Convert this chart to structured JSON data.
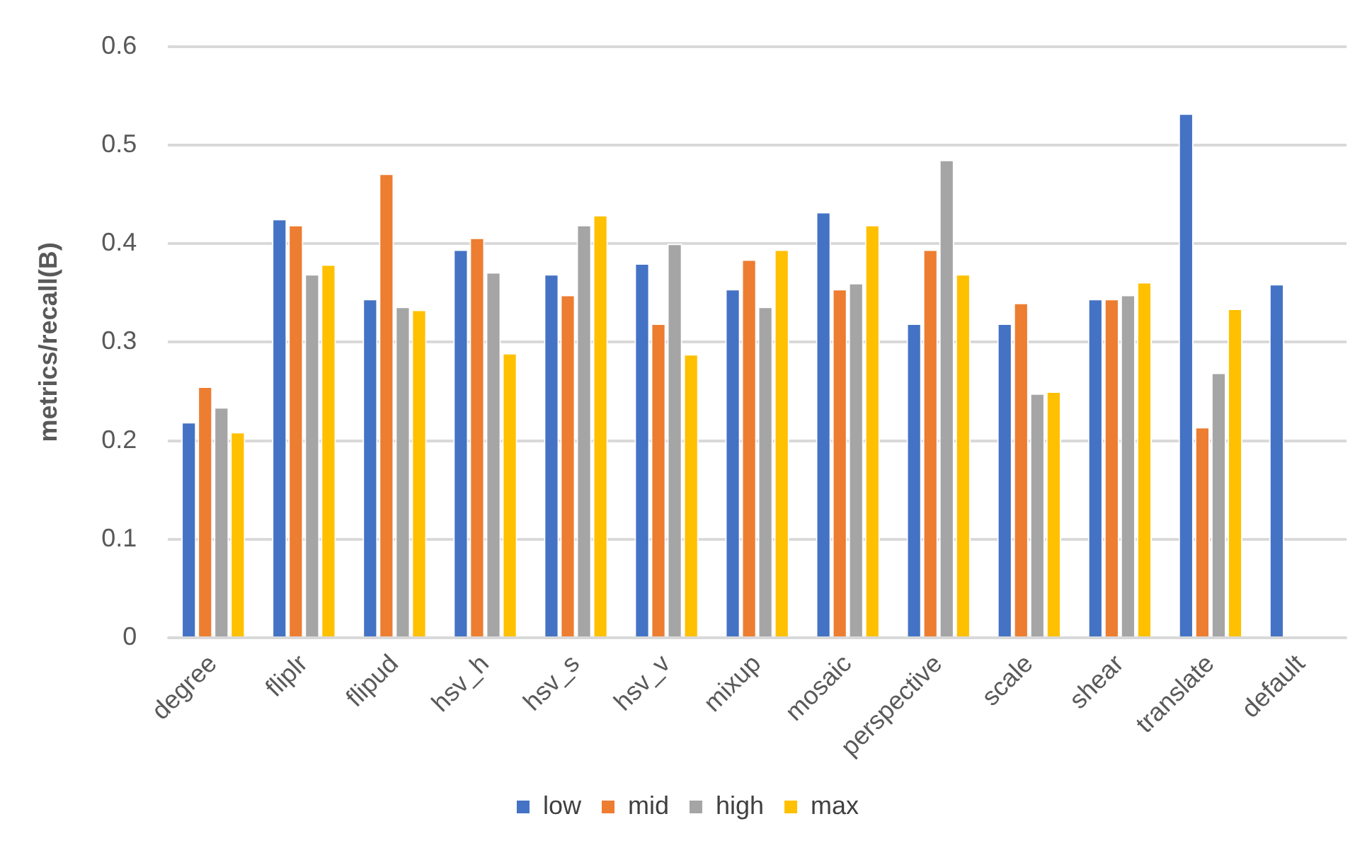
{
  "chart_data": {
    "type": "bar",
    "ylabel": "metrics/recall(B)",
    "categories": [
      "degree",
      "fliplr",
      "flipud",
      "hsv_h",
      "hsv_s",
      "hsv_v",
      "mixup",
      "mosaic",
      "perspective",
      "scale",
      "shear",
      "translate",
      "default"
    ],
    "series": [
      {
        "name": "low",
        "color": "#4472c4",
        "values": [
          0.219,
          0.425,
          0.344,
          0.394,
          0.369,
          0.38,
          0.354,
          0.432,
          0.319,
          0.319,
          0.344,
          0.532,
          0.359
        ]
      },
      {
        "name": "mid",
        "color": "#ed7d31",
        "values": [
          0.255,
          0.419,
          0.471,
          0.406,
          0.348,
          0.319,
          0.384,
          0.354,
          0.394,
          0.34,
          0.344,
          0.214,
          null
        ]
      },
      {
        "name": "high",
        "color": "#a5a5a5",
        "values": [
          0.234,
          0.369,
          0.336,
          0.371,
          0.419,
          0.4,
          0.336,
          0.36,
          0.485,
          0.248,
          0.348,
          0.269,
          null
        ]
      },
      {
        "name": "max",
        "color": "#ffc000",
        "values": [
          0.209,
          0.379,
          0.333,
          0.289,
          0.429,
          0.288,
          0.394,
          0.419,
          0.369,
          0.25,
          0.361,
          0.334,
          null
        ]
      }
    ],
    "ylim": [
      0,
      0.6
    ],
    "yticks": [
      0,
      0.1,
      0.2,
      0.3,
      0.4,
      0.5,
      0.6
    ],
    "grid": "y",
    "legend": "bottom"
  }
}
